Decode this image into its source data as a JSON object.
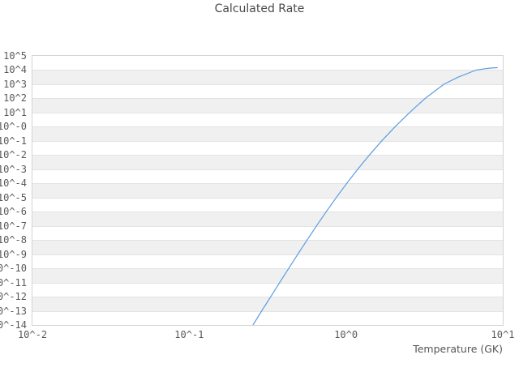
{
  "chart_data": {
    "type": "line",
    "title": "Calculated Rate",
    "xlabel": "Temperature (GK)",
    "ylabel": "",
    "x_scale": "log10",
    "y_scale": "log10",
    "xlim_log10": [
      -2,
      1
    ],
    "ylim_log10": [
      -14,
      5
    ],
    "x_tick_log10": [
      -2,
      -1,
      0,
      1
    ],
    "x_tick_labels": [
      "10^-2",
      "10^-1",
      "10^0",
      "10^1"
    ],
    "y_tick_log10": [
      5,
      4,
      3,
      2,
      1,
      0,
      -1,
      -2,
      -3,
      -4,
      -5,
      -6,
      -7,
      -8,
      -9,
      -10,
      -11,
      -12,
      -13,
      -14
    ],
    "y_tick_labels": [
      "10^5",
      "10^4",
      "10^3",
      "10^2",
      "10^1",
      "10^-0",
      "10^-1",
      "10^-2",
      "10^-3",
      "10^-4",
      "10^-5",
      "10^-6",
      "10^-7",
      "10^-8",
      "10^-9",
      "10^-10",
      "10^-11",
      "10^-12",
      "10^-13",
      "10^-14"
    ],
    "grid": "horizontal-only",
    "alternating_row_bands": true,
    "legend": "none",
    "series": [
      {
        "name": "calculated-rate",
        "color": "#5b9de0",
        "points_format": "[log10(Temperature GK), log10(rate)]",
        "points": [
          [
            -0.593,
            -14
          ],
          [
            -0.537,
            -13
          ],
          [
            -0.48,
            -12
          ],
          [
            -0.423,
            -11
          ],
          [
            -0.365,
            -10
          ],
          [
            -0.307,
            -9
          ],
          [
            -0.248,
            -8
          ],
          [
            -0.188,
            -7
          ],
          [
            -0.126,
            -6
          ],
          [
            -0.062,
            -5
          ],
          [
            0.005,
            -4
          ],
          [
            0.075,
            -3
          ],
          [
            0.149,
            -2
          ],
          [
            0.228,
            -1
          ],
          [
            0.313,
            0
          ],
          [
            0.405,
            1
          ],
          [
            0.505,
            2
          ],
          [
            0.625,
            3
          ],
          [
            0.715,
            3.5
          ],
          [
            0.83,
            4
          ],
          [
            0.89,
            4.1
          ],
          [
            0.93,
            4.15
          ],
          [
            0.965,
            4.17
          ]
        ]
      }
    ]
  },
  "style": {
    "band_color": "#f0f0f0",
    "grid_color": "#e3e3e3",
    "border_color": "#d4d4d4",
    "tick_text_color": "#595959",
    "title_color": "#4a4a4a",
    "curve_color": "#5b9de0",
    "background_color": "#ffffff"
  }
}
